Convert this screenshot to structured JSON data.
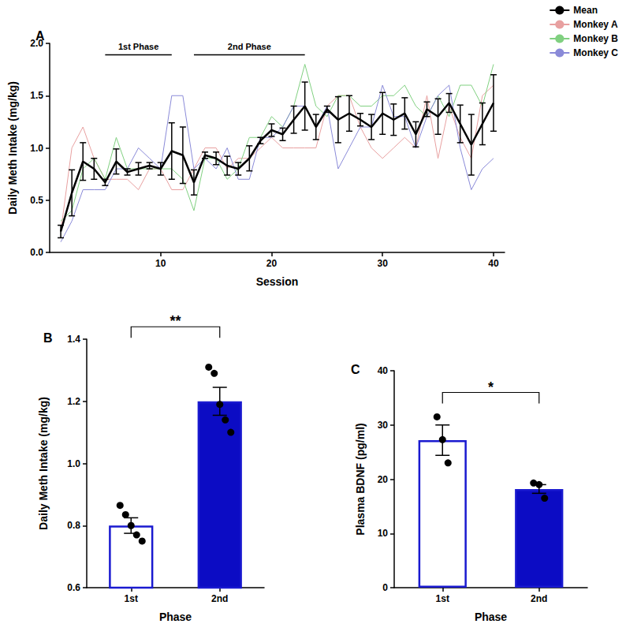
{
  "chart_data": [
    {
      "type": "line",
      "title": "A",
      "x_label": "Session",
      "y_label": "Daily Meth Intake (mg/kg)",
      "x": [
        1,
        2,
        3,
        4,
        5,
        6,
        7,
        8,
        9,
        10,
        11,
        12,
        13,
        14,
        15,
        16,
        17,
        18,
        19,
        20,
        21,
        22,
        23,
        24,
        25,
        26,
        27,
        28,
        29,
        30,
        31,
        32,
        33,
        34,
        35,
        36,
        37,
        38,
        39,
        40
      ],
      "series": [
        {
          "name": "Mean",
          "color": "#000000",
          "values": [
            0.2,
            0.57,
            0.87,
            0.8,
            0.67,
            0.87,
            0.77,
            0.8,
            0.83,
            0.8,
            0.97,
            0.93,
            0.67,
            0.93,
            0.9,
            0.83,
            0.8,
            0.9,
            1.07,
            1.17,
            1.13,
            1.27,
            1.4,
            1.2,
            1.37,
            1.27,
            1.33,
            1.27,
            1.2,
            1.33,
            1.27,
            1.33,
            1.13,
            1.37,
            1.3,
            1.43,
            1.23,
            1.03,
            1.23,
            1.43
          ],
          "errors": [
            0.06,
            0.22,
            0.18,
            0.1,
            0.03,
            0.12,
            0.03,
            0.06,
            0.03,
            0.06,
            0.27,
            0.27,
            0.12,
            0.03,
            0.06,
            0.09,
            0.06,
            0.12,
            0.03,
            0.06,
            0.06,
            0.13,
            0.23,
            0.12,
            0.03,
            0.22,
            0.17,
            0.06,
            0.12,
            0.2,
            0.15,
            0.15,
            0.12,
            0.07,
            0.17,
            0.09,
            0.18,
            0.29,
            0.2,
            0.27
          ]
        },
        {
          "name": "Monkey A",
          "color": "#e8a0a0",
          "values": [
            0.2,
            1.0,
            1.2,
            0.9,
            0.7,
            0.7,
            0.7,
            0.6,
            0.8,
            0.8,
            0.6,
            0.6,
            0.8,
            1.0,
            1.0,
            0.8,
            0.9,
            0.9,
            1.0,
            1.1,
            1.0,
            1.0,
            1.0,
            1.0,
            1.4,
            1.5,
            1.5,
            1.2,
            1.0,
            0.9,
            1.0,
            1.1,
            1.0,
            1.5,
            0.9,
            1.4,
            1.1,
            0.9,
            1.5,
            1.6
          ]
        },
        {
          "name": "Monkey B",
          "color": "#80d080",
          "values": [
            0.3,
            0.4,
            0.8,
            0.9,
            0.7,
            1.1,
            0.8,
            0.8,
            0.8,
            0.8,
            0.8,
            0.7,
            0.4,
            0.9,
            0.9,
            0.7,
            0.8,
            1.1,
            1.1,
            1.3,
            1.2,
            1.4,
            1.8,
            1.4,
            1.3,
            1.5,
            1.5,
            1.4,
            1.4,
            1.5,
            1.5,
            1.6,
            1.4,
            1.3,
            1.5,
            1.3,
            1.6,
            1.6,
            1.4,
            1.8
          ]
        },
        {
          "name": "Monkey C",
          "color": "#8a8ad8",
          "values": [
            0.1,
            0.3,
            0.6,
            0.6,
            0.6,
            0.8,
            0.8,
            1.0,
            0.9,
            0.8,
            1.5,
            1.5,
            0.8,
            0.9,
            0.8,
            1.0,
            0.7,
            0.7,
            1.1,
            1.1,
            1.2,
            1.4,
            1.4,
            1.2,
            1.4,
            0.8,
            1.0,
            1.2,
            1.2,
            1.6,
            1.3,
            1.3,
            1.0,
            1.3,
            1.5,
            1.6,
            1.0,
            0.6,
            0.8,
            0.9
          ]
        }
      ],
      "xlim": [
        0,
        41
      ],
      "xticks": [
        10,
        20,
        30,
        40
      ],
      "ylim": [
        0,
        2
      ],
      "yticks": [
        {
          "value": 0,
          "label": "0.0"
        },
        {
          "value": 0.5,
          "label": "0.5"
        },
        {
          "value": 1,
          "label": "1.0"
        },
        {
          "value": 1.5,
          "label": "1.5"
        },
        {
          "value": 2,
          "label": "2.0"
        }
      ],
      "legend": "top-right",
      "annotations": [
        {
          "text": "1st Phase",
          "x_start": 5,
          "x_end": 11,
          "y": 1.89
        },
        {
          "text": "2nd Phase",
          "x_start": 13,
          "x_end": 23,
          "y": 1.89
        }
      ]
    },
    {
      "type": "bar",
      "title": "B",
      "x_label": "Phase",
      "y_label": "Daily Meth Intake (mg/kg)",
      "categories": [
        "1st",
        "2nd"
      ],
      "values": [
        0.8,
        1.2
      ],
      "errors": [
        0.025,
        0.045
      ],
      "points": [
        [
          0.865,
          0.835,
          0.8,
          0.77,
          0.75
        ],
        [
          1.31,
          1.29,
          1.19,
          1.14,
          1.1
        ]
      ],
      "colors": [
        "#ffffff",
        "#0c0cc4"
      ],
      "ylim": [
        0.6,
        1.4
      ],
      "yticks": [
        0.6,
        0.8,
        {
          "value": 1,
          "label": "1.0"
        },
        1.2,
        1.4
      ],
      "annotations": [
        {
          "text": "**",
          "between": [
            "1st",
            "2nd"
          ],
          "y": 1.44
        }
      ]
    },
    {
      "type": "bar",
      "title": "C",
      "x_label": "Phase",
      "y_label": "Plasma BDNF (pg/ml)",
      "categories": [
        "1st",
        "2nd"
      ],
      "values": [
        27.2,
        18.2
      ],
      "errors": [
        2.8,
        0.8
      ],
      "points": [
        [
          31.5,
          27.3,
          23.0
        ],
        [
          19.3,
          19.0,
          16.5
        ]
      ],
      "colors": [
        "#ffffff",
        "#0c0cc4"
      ],
      "ylim": [
        0,
        40
      ],
      "yticks": [
        0,
        10,
        20,
        30,
        40
      ],
      "annotations": [
        {
          "text": "*",
          "between": [
            "1st",
            "2nd"
          ],
          "y": 36
        }
      ]
    }
  ]
}
